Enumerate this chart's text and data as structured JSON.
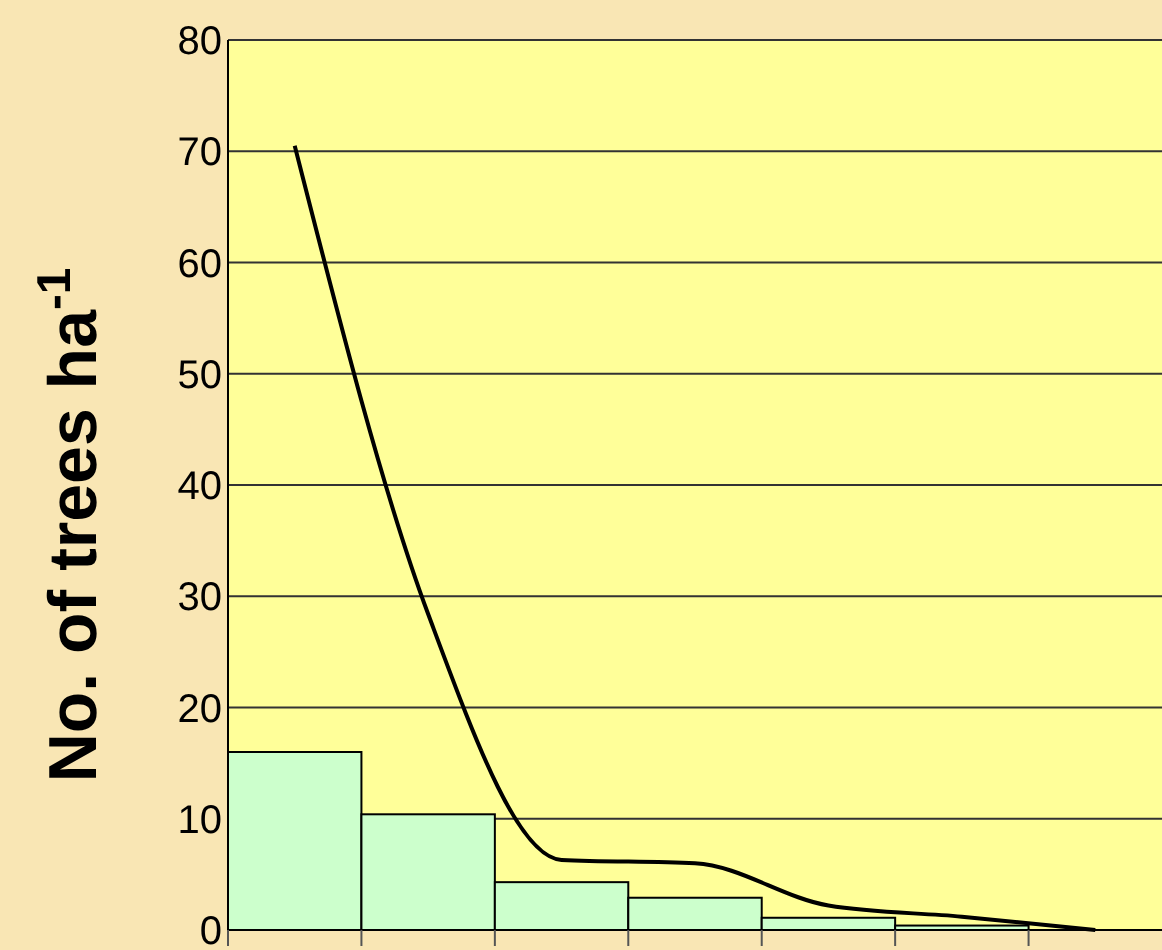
{
  "chart_data": {
    "type": "bar",
    "ylabel": "No. of trees ha$^{-1}$",
    "categories": [
      null,
      null,
      null,
      null,
      null,
      null,
      null
    ],
    "series": [
      {
        "color": "#ccffcc",
        "values": [
          16,
          10.4,
          4.3,
          2.9,
          1.1,
          0.4,
          0
        ]
      },
      {
        "type": "line",
        "color": "#000000",
        "values": [
          70.5,
          28.4,
          6.3,
          6,
          2.2,
          1.2,
          0
        ]
      }
    ],
    "ylim": [
      0,
      80
    ],
    "yticks": [
      0,
      10,
      20,
      30,
      40,
      50,
      60,
      70,
      80
    ],
    "grid": "y",
    "marker": "none",
    "line_style": "solid"
  }
}
